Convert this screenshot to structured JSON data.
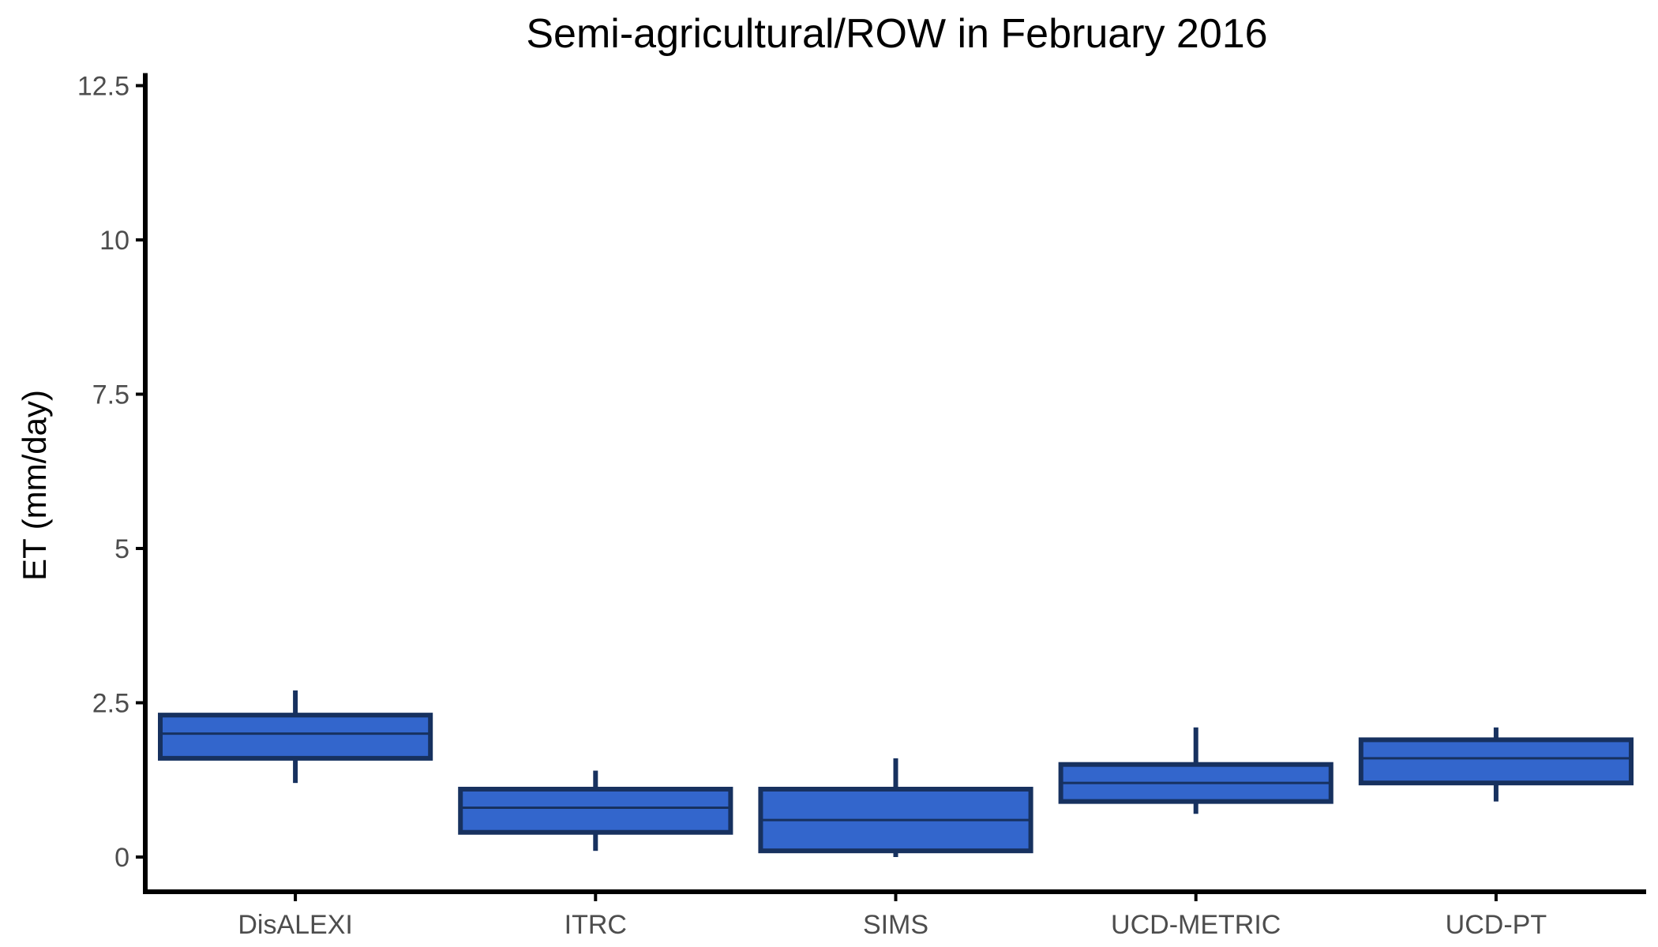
{
  "chart_data": {
    "type": "box",
    "title": "Semi-agricultural/ROW in February 2016",
    "xlabel": "",
    "ylabel": "ET (mm/day)",
    "ylim": [
      -0.6,
      12.6
    ],
    "yticks": [
      0,
      2.5,
      5,
      7.5,
      10,
      12.5
    ],
    "ytick_labels": [
      "0",
      "2.5",
      "5",
      "7.5",
      "10",
      "12.5"
    ],
    "categories": [
      "DisALEXI",
      "ITRC",
      "SIMS",
      "UCD-METRIC",
      "UCD-PT"
    ],
    "boxes": [
      {
        "name": "DisALEXI",
        "whisker_low": 1.2,
        "q1": 1.6,
        "median": 2.0,
        "q3": 2.3,
        "whisker_high": 2.7
      },
      {
        "name": "ITRC",
        "whisker_low": 0.1,
        "q1": 0.4,
        "median": 0.8,
        "q3": 1.1,
        "whisker_high": 1.4
      },
      {
        "name": "SIMS",
        "whisker_low": 0.0,
        "q1": 0.1,
        "median": 0.6,
        "q3": 1.1,
        "whisker_high": 1.6
      },
      {
        "name": "UCD-METRIC",
        "whisker_low": 0.7,
        "q1": 0.9,
        "median": 1.2,
        "q3": 1.5,
        "whisker_high": 2.1
      },
      {
        "name": "UCD-PT",
        "whisker_low": 0.9,
        "q1": 1.2,
        "median": 1.6,
        "q3": 1.9,
        "whisker_high": 2.1
      }
    ],
    "colors": {
      "box_fill": "#3366cc",
      "box_stroke": "#17315f",
      "axis": "#000000"
    },
    "grid": false,
    "legend": "none"
  }
}
